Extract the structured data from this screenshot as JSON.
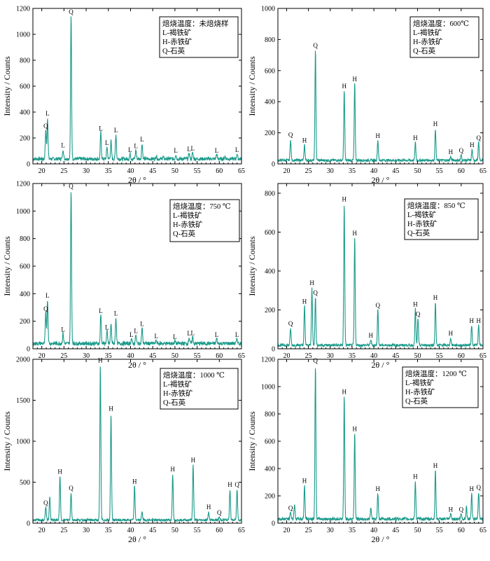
{
  "colors": {
    "pattern": "#1a9a8a",
    "axis": "#000000",
    "background": "#ffffff"
  },
  "shared": {
    "xlabel": "2θ / °",
    "ylabel": "Intensity / Counts",
    "xlim": [
      18,
      65
    ],
    "xticks": [
      20,
      25,
      30,
      35,
      40,
      45,
      50,
      55,
      60,
      65
    ]
  },
  "chart_data": [
    {
      "type": "line",
      "title": "焙烧温度：未焙烧样",
      "legend": [
        "焙烧温度：未焙烧样",
        "L-褐铁矿",
        "H-赤铁矿",
        "Q-石英"
      ],
      "xlabel": "2θ / °",
      "ylabel": "Intensity / Counts",
      "xlim": [
        18,
        65
      ],
      "ylim": [
        0,
        1200
      ],
      "yticks": [
        0,
        200,
        400,
        600,
        800,
        1000,
        1200
      ],
      "baseline": 25,
      "peaks": [
        {
          "x": 20.9,
          "y": 250,
          "label": "Q"
        },
        {
          "x": 21.3,
          "y": 345,
          "label": "L"
        },
        {
          "x": 24.8,
          "y": 100,
          "label": "L"
        },
        {
          "x": 26.6,
          "y": 1130,
          "label": "Q"
        },
        {
          "x": 33.3,
          "y": 230,
          "label": "L"
        },
        {
          "x": 34.7,
          "y": 120,
          "label": "L"
        },
        {
          "x": 35.6,
          "y": 165,
          "label": ""
        },
        {
          "x": 36.7,
          "y": 215,
          "label": "L"
        },
        {
          "x": 39.9,
          "y": 65,
          "label": "L"
        },
        {
          "x": 41.2,
          "y": 95,
          "label": "L"
        },
        {
          "x": 42.6,
          "y": 145,
          "label": "L"
        },
        {
          "x": 45.8,
          "y": 50,
          "label": ""
        },
        {
          "x": 47.3,
          "y": 40,
          "label": ""
        },
        {
          "x": 50.2,
          "y": 60,
          "label": "L"
        },
        {
          "x": 53.2,
          "y": 70,
          "label": "L"
        },
        {
          "x": 54.0,
          "y": 75,
          "label": "L"
        },
        {
          "x": 59.4,
          "y": 60,
          "label": "L"
        },
        {
          "x": 61.3,
          "y": 45,
          "label": ""
        },
        {
          "x": 64.0,
          "y": 65,
          "label": "L"
        }
      ]
    },
    {
      "type": "line",
      "title": "焙烧温度：600℃",
      "legend": [
        "焙烧温度：600℃",
        "L-褐铁矿",
        "H-赤铁矿",
        "Q-石英"
      ],
      "xlabel": "2θ / °",
      "ylabel": "Intensity / Counts",
      "xlim": [
        18,
        65
      ],
      "ylim": [
        0,
        1000
      ],
      "yticks": [
        0,
        200,
        400,
        600,
        800,
        1000
      ],
      "baseline": 15,
      "peaks": [
        {
          "x": 20.9,
          "y": 150,
          "label": "Q"
        },
        {
          "x": 24.1,
          "y": 115,
          "label": "H"
        },
        {
          "x": 26.6,
          "y": 725,
          "label": "Q"
        },
        {
          "x": 33.2,
          "y": 465,
          "label": "H"
        },
        {
          "x": 35.6,
          "y": 510,
          "label": "H"
        },
        {
          "x": 40.9,
          "y": 145,
          "label": "H"
        },
        {
          "x": 49.5,
          "y": 130,
          "label": "H"
        },
        {
          "x": 54.1,
          "y": 220,
          "label": "H"
        },
        {
          "x": 57.6,
          "y": 40,
          "label": "H"
        },
        {
          "x": 60.0,
          "y": 50,
          "label": "Q"
        },
        {
          "x": 62.5,
          "y": 85,
          "label": "H"
        },
        {
          "x": 64.0,
          "y": 130,
          "label": "Q"
        }
      ]
    },
    {
      "type": "line",
      "title": "焙烧温度：750 ℃",
      "legend": [
        "焙烧温度：750 ℃",
        "L-褐铁矿",
        "H-赤铁矿",
        "Q-石英"
      ],
      "xlabel": "2θ / °",
      "ylabel": "Intensity / Counts",
      "xlim": [
        18,
        65
      ],
      "ylim": [
        0,
        1200
      ],
      "yticks": [
        0,
        200,
        400,
        600,
        800,
        1000,
        1200
      ],
      "baseline": 25,
      "peaks": [
        {
          "x": 20.9,
          "y": 250,
          "label": "Q"
        },
        {
          "x": 21.3,
          "y": 345,
          "label": "L"
        },
        {
          "x": 24.8,
          "y": 100,
          "label": "L"
        },
        {
          "x": 26.6,
          "y": 1140,
          "label": "Q"
        },
        {
          "x": 33.3,
          "y": 235,
          "label": "L"
        },
        {
          "x": 34.7,
          "y": 115,
          "label": "L"
        },
        {
          "x": 35.6,
          "y": 170,
          "label": ""
        },
        {
          "x": 36.7,
          "y": 215,
          "label": "L"
        },
        {
          "x": 40.2,
          "y": 60,
          "label": "L"
        },
        {
          "x": 41.2,
          "y": 90,
          "label": "L"
        },
        {
          "x": 42.6,
          "y": 140,
          "label": "L"
        },
        {
          "x": 45.8,
          "y": 50,
          "label": "L"
        },
        {
          "x": 50.0,
          "y": 45,
          "label": "L"
        },
        {
          "x": 53.2,
          "y": 70,
          "label": "L"
        },
        {
          "x": 54.0,
          "y": 75,
          "label": "L"
        },
        {
          "x": 59.4,
          "y": 60,
          "label": "L"
        },
        {
          "x": 64.0,
          "y": 60,
          "label": "L"
        }
      ]
    },
    {
      "type": "line",
      "title": "焙烧温度：850 ℃",
      "legend": [
        "焙烧温度：850 ℃",
        "L-褐铁矿",
        "H-赤铁矿",
        "Q-石英"
      ],
      "xlabel": "2θ / °",
      "ylabel": "Intensity / Counts",
      "xlim": [
        18,
        65
      ],
      "ylim": [
        0,
        850
      ],
      "yticks": [
        0,
        200,
        400,
        600,
        800
      ],
      "baseline": 12,
      "peaks": [
        {
          "x": 20.9,
          "y": 100,
          "label": "Q"
        },
        {
          "x": 24.1,
          "y": 215,
          "label": "H"
        },
        {
          "x": 25.8,
          "y": 310,
          "label": "H"
        },
        {
          "x": 26.6,
          "y": 260,
          "label": "Q"
        },
        {
          "x": 33.2,
          "y": 740,
          "label": "H"
        },
        {
          "x": 35.6,
          "y": 565,
          "label": "H"
        },
        {
          "x": 39.3,
          "y": 40,
          "label": "H"
        },
        {
          "x": 40.9,
          "y": 195,
          "label": "Q"
        },
        {
          "x": 49.5,
          "y": 200,
          "label": "H"
        },
        {
          "x": 50.1,
          "y": 150,
          "label": "Q"
        },
        {
          "x": 54.1,
          "y": 235,
          "label": "H"
        },
        {
          "x": 57.6,
          "y": 50,
          "label": "H"
        },
        {
          "x": 62.4,
          "y": 115,
          "label": "H"
        },
        {
          "x": 64.0,
          "y": 115,
          "label": "H"
        }
      ]
    },
    {
      "type": "line",
      "title": "焙烧温度：1000 ℃",
      "legend": [
        "焙烧温度：1000 ℃",
        "L-褐铁矿",
        "H-赤铁矿",
        "Q-石英"
      ],
      "xlabel": "2θ / °",
      "ylabel": "Intensity / Counts",
      "xlim": [
        18,
        65
      ],
      "ylim": [
        0,
        2000
      ],
      "yticks": [
        0,
        500,
        1000,
        1500,
        2000
      ],
      "baseline": 25,
      "peaks": [
        {
          "x": 20.9,
          "y": 180,
          "label": "Q"
        },
        {
          "x": 21.8,
          "y": 320,
          "label": ""
        },
        {
          "x": 24.1,
          "y": 560,
          "label": "H"
        },
        {
          "x": 26.6,
          "y": 360,
          "label": "Q"
        },
        {
          "x": 33.2,
          "y": 1920,
          "label": "H"
        },
        {
          "x": 35.6,
          "y": 1330,
          "label": "H"
        },
        {
          "x": 40.9,
          "y": 440,
          "label": "H"
        },
        {
          "x": 42.6,
          "y": 130,
          "label": ""
        },
        {
          "x": 49.5,
          "y": 590,
          "label": "H"
        },
        {
          "x": 54.1,
          "y": 700,
          "label": "H"
        },
        {
          "x": 57.6,
          "y": 130,
          "label": "H"
        },
        {
          "x": 60.0,
          "y": 60,
          "label": "Q"
        },
        {
          "x": 62.4,
          "y": 400,
          "label": "H"
        },
        {
          "x": 64.0,
          "y": 400,
          "label": "Q"
        }
      ]
    },
    {
      "type": "line",
      "title": "焙烧温度：1200 ℃",
      "legend": [
        "焙烧温度：1200 ℃",
        "L-褐铁矿",
        "H-赤铁矿",
        "Q-石英"
      ],
      "xlabel": "2θ / °",
      "ylabel": "Intensity / Counts",
      "xlim": [
        18,
        65
      ],
      "ylim": [
        0,
        1200
      ],
      "yticks": [
        0,
        200,
        400,
        600,
        800,
        1000,
        1200
      ],
      "baseline": 20,
      "peaks": [
        {
          "x": 20.9,
          "y": 70,
          "label": "Q"
        },
        {
          "x": 21.8,
          "y": 130,
          "label": ""
        },
        {
          "x": 24.1,
          "y": 270,
          "label": "H"
        },
        {
          "x": 26.6,
          "y": 1150,
          "label": "Q"
        },
        {
          "x": 33.2,
          "y": 920,
          "label": "H"
        },
        {
          "x": 35.6,
          "y": 650,
          "label": "H"
        },
        {
          "x": 39.3,
          "y": 100,
          "label": ""
        },
        {
          "x": 40.9,
          "y": 210,
          "label": "H"
        },
        {
          "x": 49.5,
          "y": 300,
          "label": "H"
        },
        {
          "x": 54.1,
          "y": 380,
          "label": "H"
        },
        {
          "x": 57.6,
          "y": 60,
          "label": "H"
        },
        {
          "x": 60.0,
          "y": 60,
          "label": "Q"
        },
        {
          "x": 61.2,
          "y": 110,
          "label": ""
        },
        {
          "x": 62.4,
          "y": 210,
          "label": "H"
        },
        {
          "x": 64.0,
          "y": 220,
          "label": "Q"
        }
      ]
    }
  ]
}
